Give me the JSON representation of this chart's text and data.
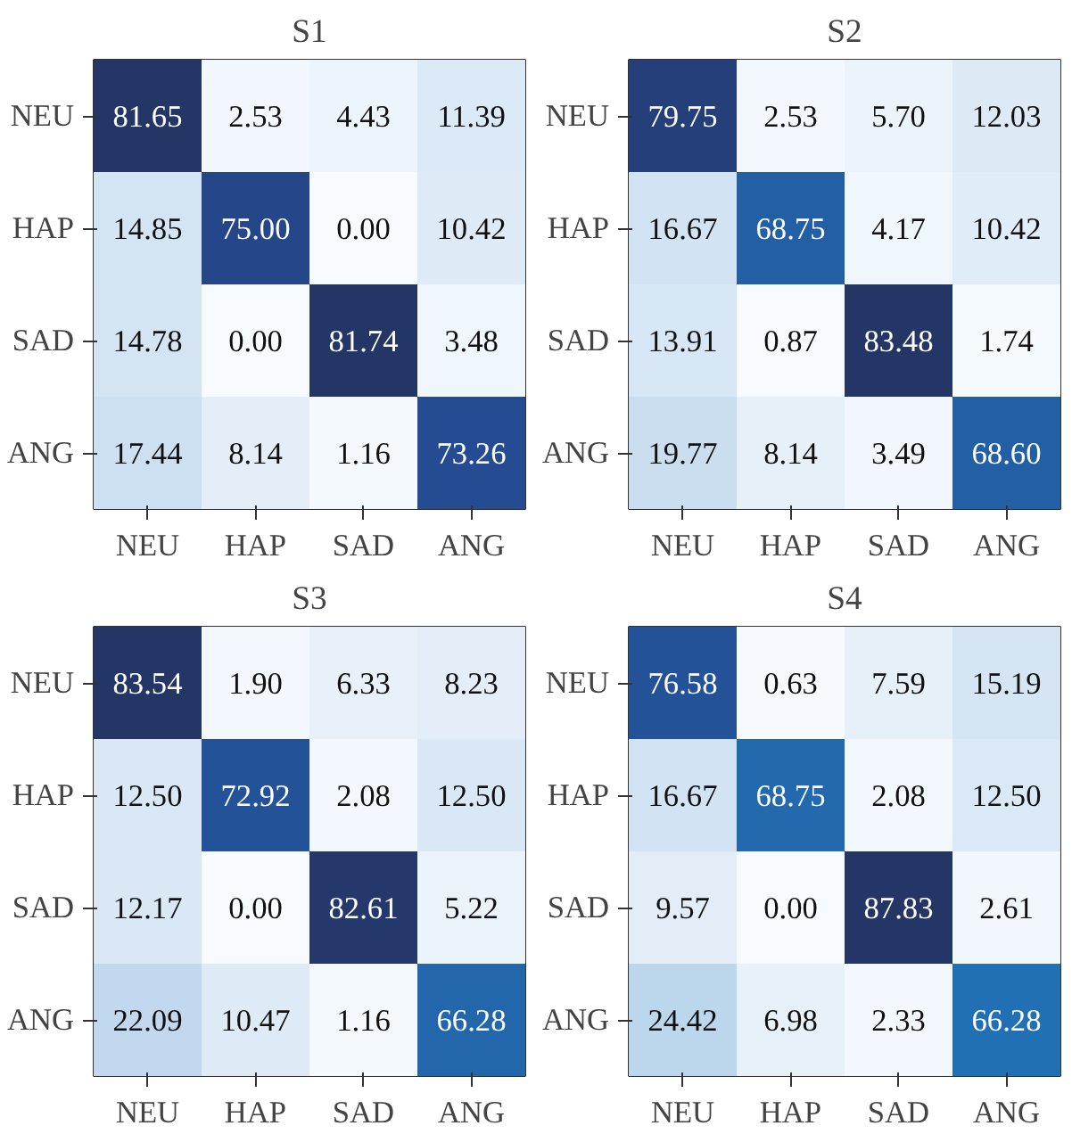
{
  "chart_data": [
    {
      "type": "heatmap",
      "title": "S1",
      "categories": [
        "NEU",
        "HAP",
        "SAD",
        "ANG"
      ],
      "y_categories": [
        "NEU",
        "HAP",
        "SAD",
        "ANG"
      ],
      "data_labels": true,
      "cells": [
        [
          81.65,
          2.53,
          4.43,
          11.39
        ],
        [
          14.85,
          75.0,
          0.0,
          10.42
        ],
        [
          14.78,
          0.0,
          81.74,
          3.48
        ],
        [
          17.44,
          8.14,
          1.16,
          73.26
        ]
      ],
      "cell_labels": [
        [
          "81.65",
          "2.53",
          "4.43",
          "11.39"
        ],
        [
          "14.85",
          "75.00",
          "0.00",
          "10.42"
        ],
        [
          "14.78",
          "0.00",
          "81.74",
          "3.48"
        ],
        [
          "17.44",
          "8.14",
          "1.16",
          "73.26"
        ]
      ]
    },
    {
      "type": "heatmap",
      "title": "S2",
      "categories": [
        "NEU",
        "HAP",
        "SAD",
        "ANG"
      ],
      "y_categories": [
        "NEU",
        "HAP",
        "SAD",
        "ANG"
      ],
      "data_labels": true,
      "cells": [
        [
          79.75,
          2.53,
          5.7,
          12.03
        ],
        [
          16.67,
          68.75,
          4.17,
          10.42
        ],
        [
          13.91,
          0.87,
          83.48,
          1.74
        ],
        [
          19.77,
          8.14,
          3.49,
          68.6
        ]
      ],
      "cell_labels": [
        [
          "79.75",
          "2.53",
          "5.70",
          "12.03"
        ],
        [
          "16.67",
          "68.75",
          "4.17",
          "10.42"
        ],
        [
          "13.91",
          "0.87",
          "83.48",
          "1.74"
        ],
        [
          "19.77",
          "8.14",
          "3.49",
          "68.60"
        ]
      ]
    },
    {
      "type": "heatmap",
      "title": "S3",
      "categories": [
        "NEU",
        "HAP",
        "SAD",
        "ANG"
      ],
      "y_categories": [
        "NEU",
        "HAP",
        "SAD",
        "ANG"
      ],
      "data_labels": true,
      "cells": [
        [
          83.54,
          1.9,
          6.33,
          8.23
        ],
        [
          12.5,
          72.92,
          2.08,
          12.5
        ],
        [
          12.17,
          0.0,
          82.61,
          5.22
        ],
        [
          22.09,
          10.47,
          1.16,
          66.28
        ]
      ],
      "cell_labels": [
        [
          "83.54",
          "1.90",
          "6.33",
          "8.23"
        ],
        [
          "12.50",
          "72.92",
          "2.08",
          "12.50"
        ],
        [
          "12.17",
          "0.00",
          "82.61",
          "5.22"
        ],
        [
          "22.09",
          "10.47",
          "1.16",
          "66.28"
        ]
      ]
    },
    {
      "type": "heatmap",
      "title": "S4",
      "categories": [
        "NEU",
        "HAP",
        "SAD",
        "ANG"
      ],
      "y_categories": [
        "NEU",
        "HAP",
        "SAD",
        "ANG"
      ],
      "data_labels": true,
      "cells": [
        [
          76.58,
          0.63,
          7.59,
          15.19
        ],
        [
          16.67,
          68.75,
          2.08,
          12.5
        ],
        [
          9.57,
          0.0,
          87.83,
          2.61
        ],
        [
          24.42,
          6.98,
          2.33,
          66.28
        ]
      ],
      "cell_labels": [
        [
          "76.58",
          "0.63",
          "7.59",
          "15.19"
        ],
        [
          "16.67",
          "68.75",
          "2.08",
          "12.50"
        ],
        [
          "9.57",
          "0.00",
          "87.83",
          "2.61"
        ],
        [
          "24.42",
          "6.98",
          "2.33",
          "66.28"
        ]
      ]
    }
  ]
}
